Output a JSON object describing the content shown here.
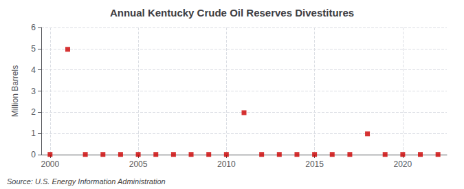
{
  "chart_data": {
    "type": "scatter",
    "title": "Annual Kentucky Crude Oil Reserves Divestitures",
    "ylabel": "Million Barrels",
    "annotations": [
      "Source: U.S. Energy Information Administration"
    ],
    "x": [
      2000,
      2001,
      2002,
      2003,
      2004,
      2005,
      2006,
      2007,
      2008,
      2009,
      2010,
      2011,
      2012,
      2013,
      2014,
      2015,
      2016,
      2017,
      2018,
      2019,
      2020,
      2021,
      2022
    ],
    "values": [
      0.01,
      4.97,
      0.01,
      0.01,
      0.01,
      0.01,
      0.01,
      0.01,
      0.01,
      0.01,
      0.01,
      1.98,
      0.01,
      0.01,
      0.01,
      0.01,
      0.01,
      0.01,
      0.98,
      0.01,
      0.01,
      0.01,
      0.01
    ],
    "color": "#cc0000",
    "marker": "square",
    "xlim": [
      1999.5,
      2022.5
    ],
    "xticks": [
      2000,
      2005,
      2010,
      2015,
      2020
    ],
    "ylim": [
      0,
      6
    ],
    "yticks": [
      0,
      1,
      2,
      3,
      4,
      5,
      6
    ],
    "grid": true
  }
}
